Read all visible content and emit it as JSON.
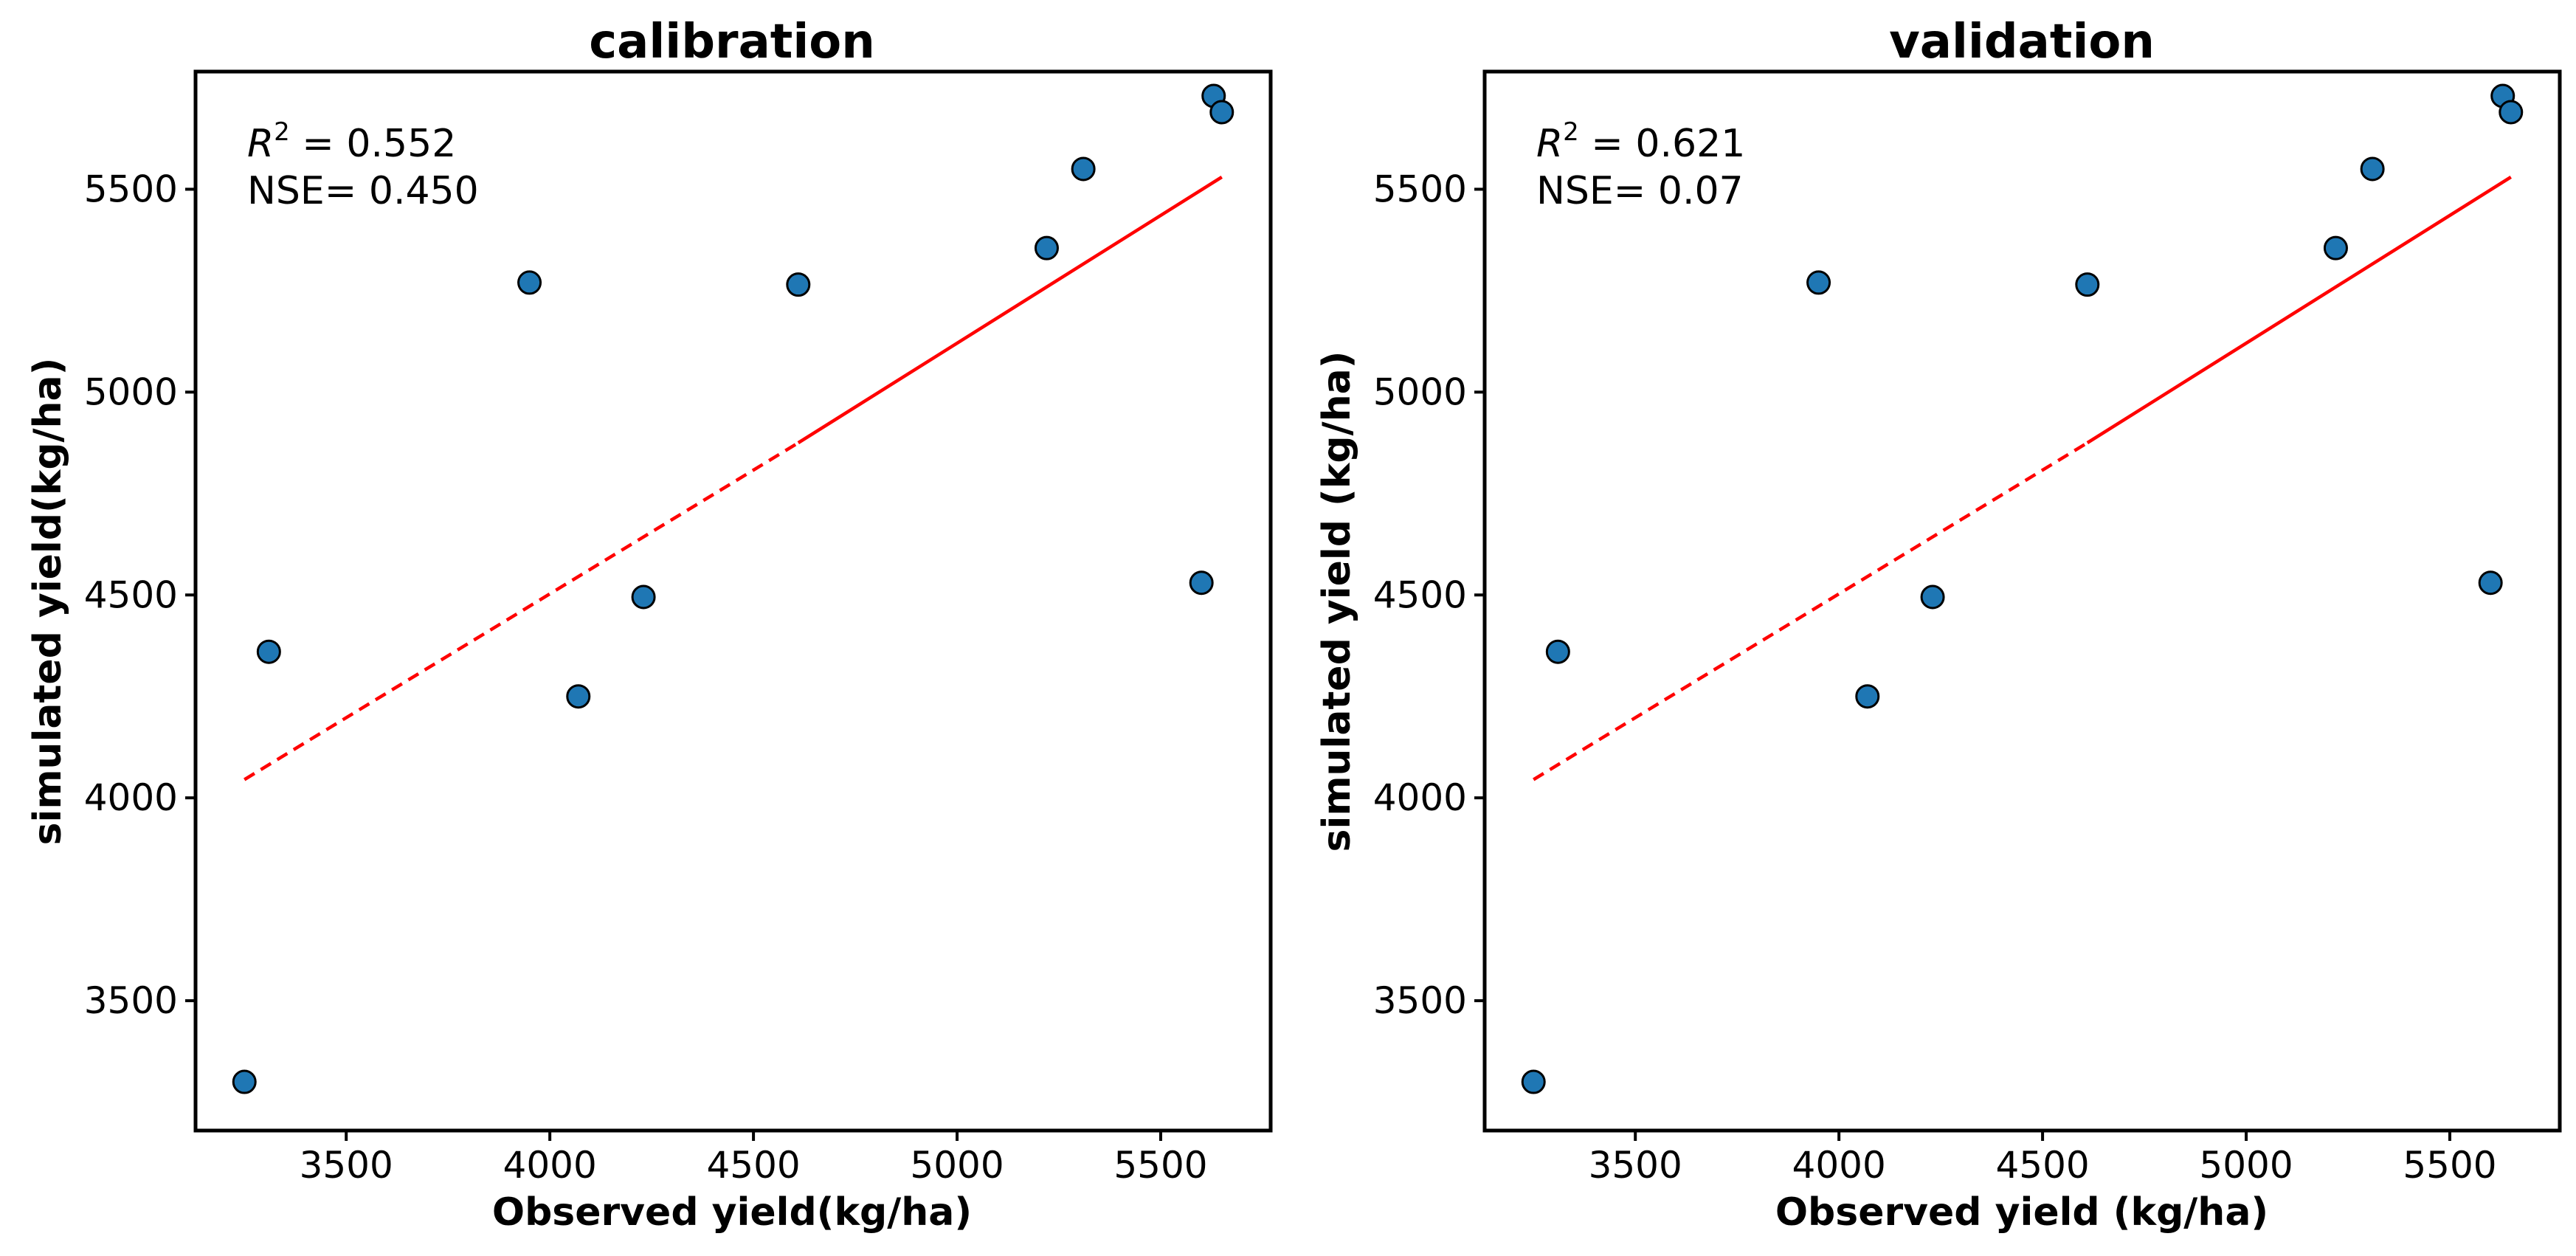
{
  "chart_data": [
    {
      "type": "scatter",
      "title": "calibration",
      "xlabel": "Observed yield(kg/ha)",
      "ylabel": "simulated yield(kg/ha)",
      "xlim": [
        3130,
        5770
      ],
      "ylim": [
        3180,
        5790
      ],
      "xticks": [
        3500,
        4000,
        4500,
        5000,
        5500
      ],
      "yticks": [
        3500,
        4000,
        4500,
        5000,
        5500
      ],
      "xtick_labels": [
        "3500",
        "4000",
        "4500",
        "5000",
        "5500"
      ],
      "ytick_labels": [
        "3500",
        "4000",
        "4500",
        "5000",
        "5500"
      ],
      "grid": false,
      "marker_color": "#1f77b4",
      "marker_edge_color": "#000000",
      "line_color": "#ff0000",
      "points": [
        {
          "x": 3250,
          "y": 3300
        },
        {
          "x": 3310,
          "y": 4360
        },
        {
          "x": 3950,
          "y": 5270
        },
        {
          "x": 4070,
          "y": 4250
        },
        {
          "x": 4230,
          "y": 4495
        },
        {
          "x": 4610,
          "y": 5265
        },
        {
          "x": 5220,
          "y": 5355
        },
        {
          "x": 5310,
          "y": 5550
        },
        {
          "x": 5600,
          "y": 4530
        },
        {
          "x": 5630,
          "y": 5730
        },
        {
          "x": 5650,
          "y": 5690
        }
      ],
      "fit_line": {
        "dashed": {
          "x": [
            3250,
            4610
          ],
          "y": [
            4045,
            4875
          ]
        },
        "solid": {
          "x": [
            4610,
            5650
          ],
          "y": [
            4875,
            5530
          ]
        }
      },
      "annotation": {
        "r2_symbol": "R",
        "r2_exponent": "2",
        "r2_value": " = 0.552",
        "nse_text": "NSE= 0.450"
      }
    },
    {
      "type": "scatter",
      "title": "validation",
      "xlabel": "Observed yield (kg/ha)",
      "ylabel": "simulated yield (kg/ha)",
      "xlim": [
        3130,
        5770
      ],
      "ylim": [
        3180,
        5790
      ],
      "xticks": [
        3500,
        4000,
        4500,
        5000,
        5500
      ],
      "yticks": [
        3500,
        4000,
        4500,
        5000,
        5500
      ],
      "xtick_labels": [
        "3500",
        "4000",
        "4500",
        "5000",
        "5500"
      ],
      "ytick_labels": [
        "3500",
        "4000",
        "4500",
        "5000",
        "5500"
      ],
      "grid": false,
      "marker_color": "#1f77b4",
      "marker_edge_color": "#000000",
      "line_color": "#ff0000",
      "points": [
        {
          "x": 3250,
          "y": 3300
        },
        {
          "x": 3310,
          "y": 4360
        },
        {
          "x": 3950,
          "y": 5270
        },
        {
          "x": 4070,
          "y": 4250
        },
        {
          "x": 4230,
          "y": 4495
        },
        {
          "x": 4610,
          "y": 5265
        },
        {
          "x": 5220,
          "y": 5355
        },
        {
          "x": 5310,
          "y": 5550
        },
        {
          "x": 5600,
          "y": 4530
        },
        {
          "x": 5630,
          "y": 5730
        },
        {
          "x": 5650,
          "y": 5690
        }
      ],
      "fit_line": {
        "dashed": {
          "x": [
            3250,
            4610
          ],
          "y": [
            4045,
            4875
          ]
        },
        "solid": {
          "x": [
            4610,
            5650
          ],
          "y": [
            4875,
            5530
          ]
        }
      },
      "annotation": {
        "r2_symbol": "R",
        "r2_exponent": "2",
        "r2_value": " = 0.621",
        "nse_text": "NSE= 0.07"
      }
    }
  ]
}
